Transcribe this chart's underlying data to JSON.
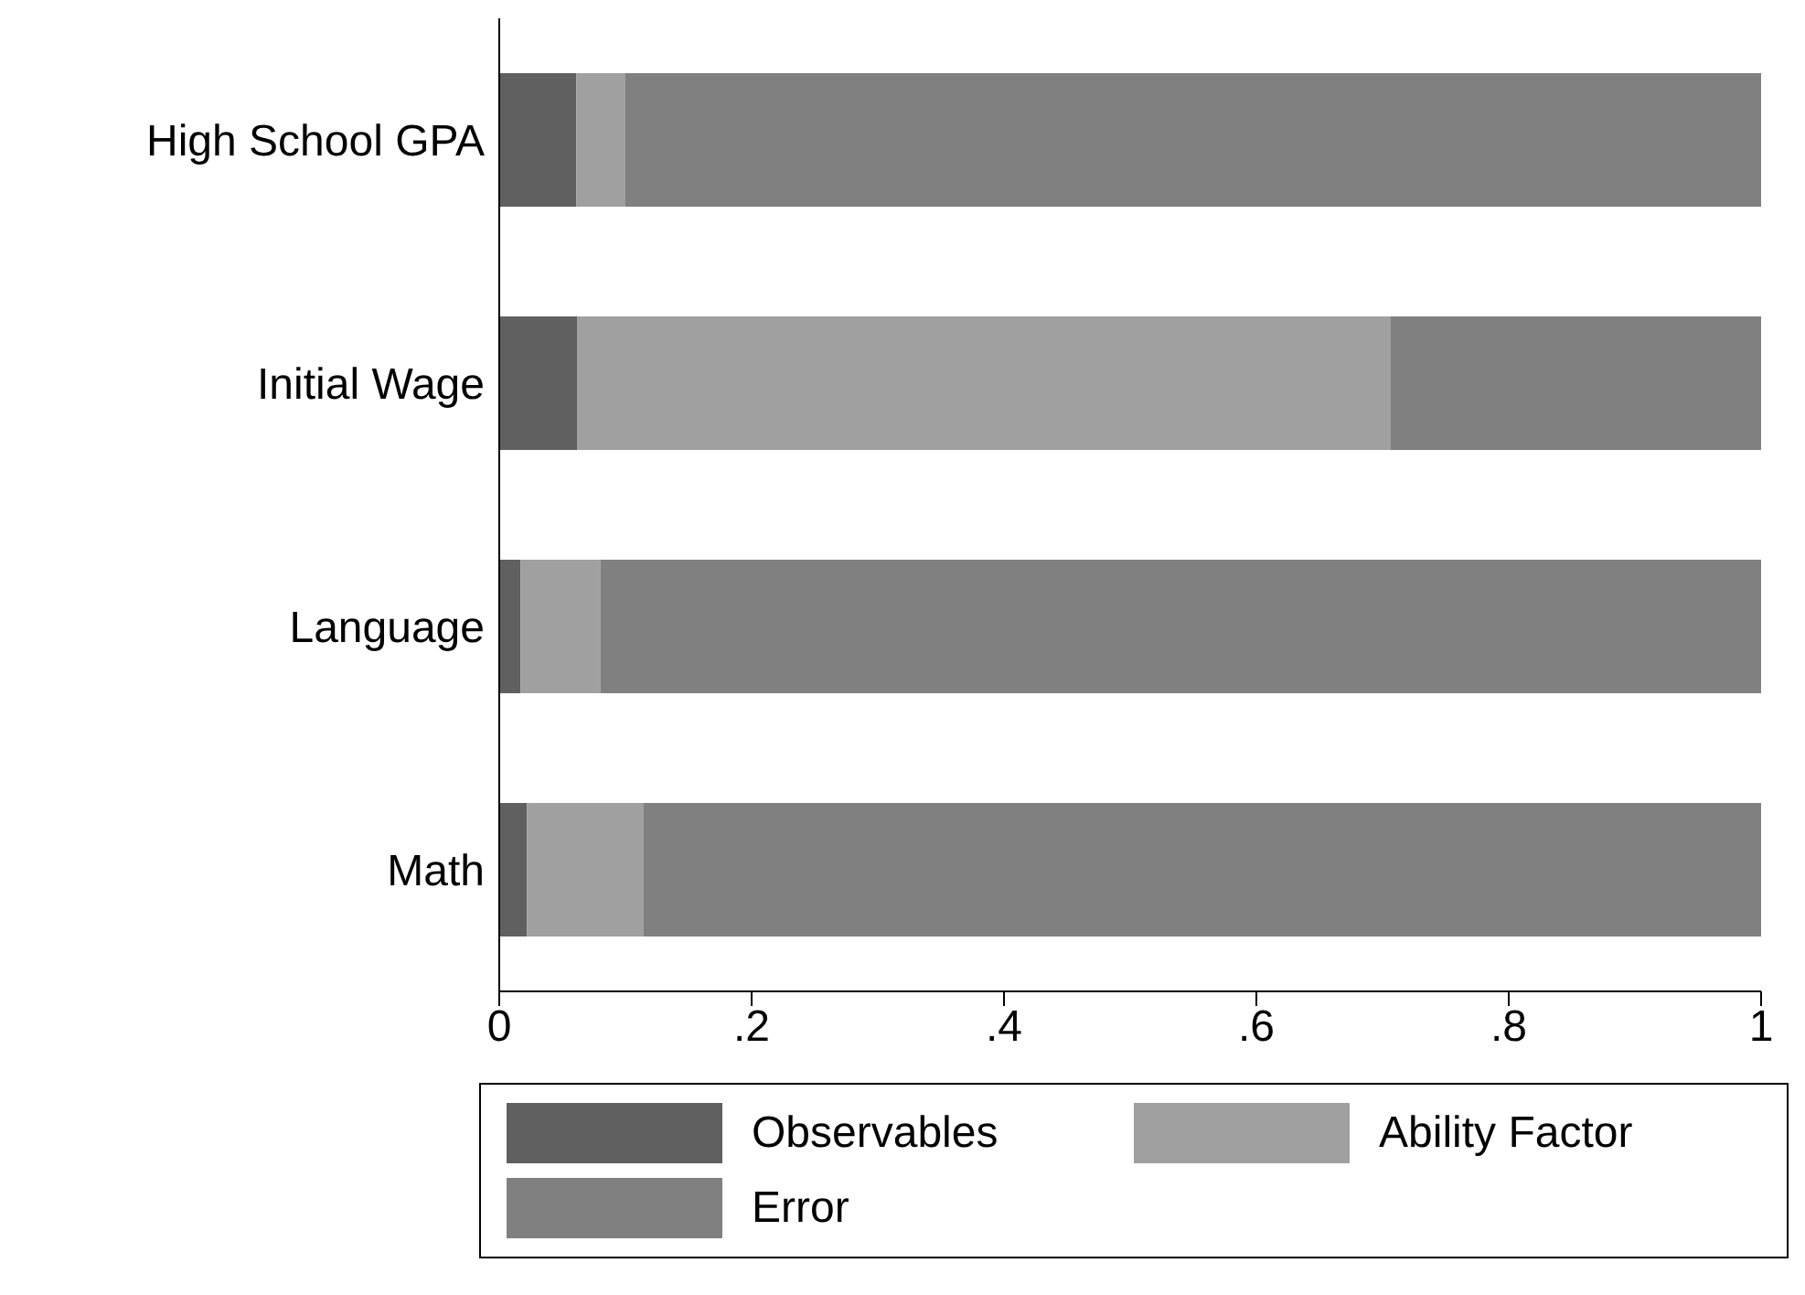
{
  "chart_data": {
    "type": "bar",
    "orientation": "horizontal",
    "stacked": true,
    "categories": [
      "High School GPA",
      "Initial Wage",
      "Language",
      "Math"
    ],
    "series": [
      {
        "name": "Observables",
        "color": "#606060",
        "values": [
          0.061,
          0.062,
          0.017,
          0.022
        ]
      },
      {
        "name": "Ability Factor",
        "color": "#a0a0a0",
        "values": [
          0.039,
          0.644,
          0.063,
          0.092
        ]
      },
      {
        "name": "Error",
        "color": "#808080",
        "values": [
          0.9,
          0.294,
          0.92,
          0.886
        ]
      }
    ],
    "xlim": [
      0,
      1
    ],
    "xticks": [
      0,
      {
        "value": 0.2,
        "label": ".2"
      },
      {
        "value": 0.4,
        "label": ".4"
      },
      {
        "value": 0.6,
        "label": ".6"
      },
      {
        "value": 0.8,
        "label": ".8"
      },
      1
    ],
    "grid": false,
    "legend": "bottom"
  }
}
